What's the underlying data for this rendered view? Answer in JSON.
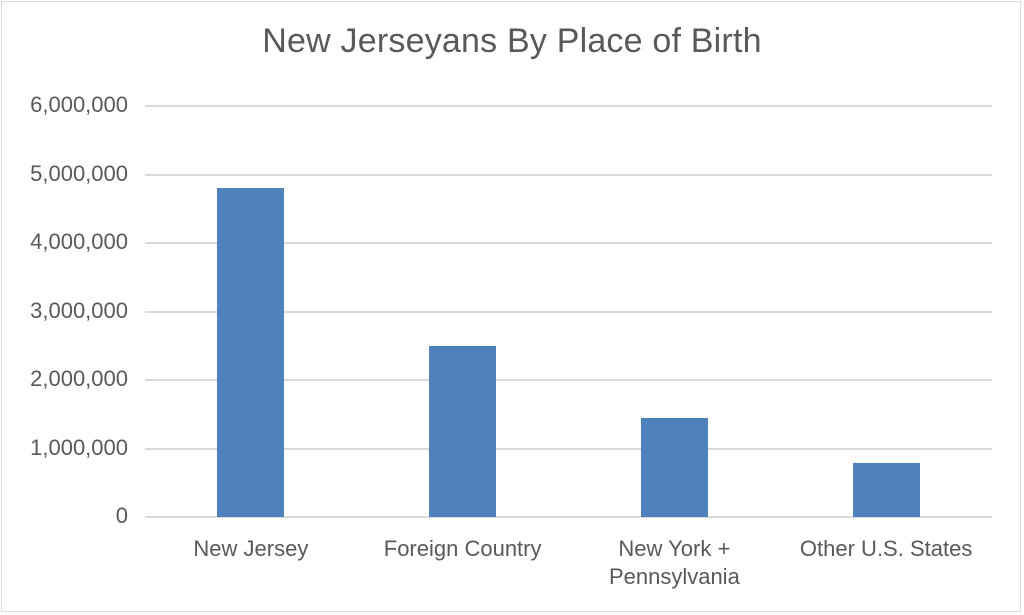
{
  "chart_data": {
    "type": "bar",
    "title": "New Jerseyans By Place of Birth",
    "xlabel": "",
    "ylabel": "",
    "categories": [
      "New Jersey",
      "Foreign Country",
      "New York + Pennsylvania",
      "Other U.S. States"
    ],
    "values": [
      4800000,
      2500000,
      1450000,
      790000
    ],
    "ylim": [
      0,
      6000000
    ],
    "yticks": [
      "0",
      "1,000,000",
      "2,000,000",
      "3,000,000",
      "4,000,000",
      "5,000,000",
      "6,000,000"
    ],
    "grid": true,
    "legend": null,
    "bar_color": "#4f81bd"
  },
  "labels": {
    "title": "New Jerseyans By Place of Birth",
    "yticks": [
      "0",
      "1,000,000",
      "2,000,000",
      "3,000,000",
      "4,000,000",
      "5,000,000",
      "6,000,000"
    ],
    "xcats": [
      {
        "line1": "New Jersey",
        "line2": ""
      },
      {
        "line1": "Foreign Country",
        "line2": ""
      },
      {
        "line1": "New York +",
        "line2": "Pennsylvania"
      },
      {
        "line1": "Other U.S. States",
        "line2": ""
      }
    ]
  }
}
